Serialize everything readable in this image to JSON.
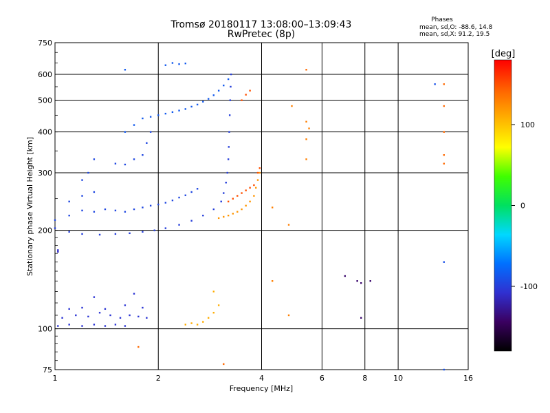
{
  "chart_data": {
    "type": "scatter",
    "title_line1": "Tromsø 20180117 13:08:00–13:09:43",
    "title_line2": "RwPretec (8p)",
    "phases": {
      "label": "Phases",
      "o_line": "mean, sd,O: -88.6, 14.8",
      "x_line": "mean, sd,X:  91.2, 19.5"
    },
    "xlabel": "Frequency [MHz]",
    "ylabel": "Stationary phase Virtual Height [km]",
    "xscale": "log",
    "yscale": "log",
    "xlim": [
      1,
      16
    ],
    "ylim": [
      75,
      750
    ],
    "x_ticks": [
      1,
      2,
      4,
      6,
      8,
      10,
      16
    ],
    "y_ticks": [
      75,
      100,
      200,
      300,
      400,
      500,
      600,
      750
    ],
    "grid": true,
    "colorbar": {
      "label": "[deg]",
      "range": [
        -180,
        180
      ],
      "ticks": [
        100,
        0,
        -100
      ],
      "colors": [
        "#000000",
        "#3a0060",
        "#3030d0",
        "#0070ff",
        "#00d8ff",
        "#00e060",
        "#40ff00",
        "#ffff00",
        "#ffb000",
        "#ff6000",
        "#ff0000"
      ]
    },
    "series": [
      {
        "points": [
          [
            1.02,
            102
          ],
          [
            1.1,
            103
          ],
          [
            1.2,
            102
          ],
          [
            1.3,
            103
          ],
          [
            1.4,
            102
          ],
          [
            1.5,
            103
          ],
          [
            1.6,
            102
          ],
          [
            1.05,
            108
          ],
          [
            1.15,
            110
          ],
          [
            1.25,
            109
          ],
          [
            1.35,
            112
          ],
          [
            1.45,
            110
          ],
          [
            1.55,
            108
          ],
          [
            1.65,
            110
          ],
          [
            1.75,
            109
          ],
          [
            1.85,
            108
          ],
          [
            1.1,
            115
          ],
          [
            1.2,
            116
          ],
          [
            1.4,
            115
          ],
          [
            1.6,
            118
          ],
          [
            1.8,
            116
          ],
          [
            1.7,
            128
          ],
          [
            1.3,
            125
          ]
        ],
        "phase": -105
      },
      {
        "points": [
          [
            1.02,
            172
          ],
          [
            1.02,
            174
          ]
        ],
        "phase": -110
      },
      {
        "points": [
          [
            1.0,
            203
          ],
          [
            1.1,
            198
          ],
          [
            1.2,
            195
          ],
          [
            1.35,
            194
          ],
          [
            1.5,
            195
          ],
          [
            1.65,
            196
          ],
          [
            1.8,
            198
          ],
          [
            1.95,
            200
          ],
          [
            2.1,
            203
          ],
          [
            2.3,
            208
          ],
          [
            2.5,
            214
          ],
          [
            2.7,
            222
          ],
          [
            2.9,
            232
          ],
          [
            3.05,
            245
          ],
          [
            3.1,
            260
          ],
          [
            3.15,
            280
          ],
          [
            3.18,
            300
          ],
          [
            3.2,
            330
          ],
          [
            3.21,
            360
          ],
          [
            3.22,
            400
          ],
          [
            3.23,
            450
          ],
          [
            3.24,
            500
          ],
          [
            3.25,
            550
          ],
          [
            3.26,
            600
          ]
        ],
        "phase": -100
      },
      {
        "points": [
          [
            1.0,
            215
          ],
          [
            1.1,
            222
          ],
          [
            1.2,
            230
          ],
          [
            1.3,
            228
          ],
          [
            1.4,
            232
          ],
          [
            1.5,
            230
          ],
          [
            1.6,
            228
          ],
          [
            1.7,
            232
          ],
          [
            1.8,
            235
          ],
          [
            1.9,
            238
          ],
          [
            2.0,
            240
          ],
          [
            2.1,
            243
          ],
          [
            2.2,
            247
          ],
          [
            2.3,
            252
          ],
          [
            2.4,
            256
          ],
          [
            2.5,
            262
          ],
          [
            2.6,
            268
          ],
          [
            1.1,
            245
          ],
          [
            1.2,
            255
          ],
          [
            1.3,
            262
          ],
          [
            1.2,
            285
          ],
          [
            1.25,
            300
          ],
          [
            1.3,
            330
          ],
          [
            1.5,
            320
          ],
          [
            1.6,
            318
          ],
          [
            1.7,
            330
          ],
          [
            1.8,
            340
          ],
          [
            1.85,
            370
          ],
          [
            1.9,
            400
          ]
        ],
        "phase": -95
      },
      {
        "points": [
          [
            1.6,
            400
          ],
          [
            1.7,
            420
          ],
          [
            1.8,
            440
          ],
          [
            1.9,
            445
          ],
          [
            2.0,
            450
          ],
          [
            2.1,
            455
          ],
          [
            2.2,
            460
          ],
          [
            2.3,
            465
          ],
          [
            2.4,
            470
          ],
          [
            2.5,
            478
          ],
          [
            2.6,
            485
          ],
          [
            2.7,
            495
          ],
          [
            2.8,
            505
          ],
          [
            2.9,
            518
          ],
          [
            3.0,
            535
          ],
          [
            3.1,
            555
          ],
          [
            3.2,
            580
          ],
          [
            2.1,
            640
          ],
          [
            2.2,
            650
          ],
          [
            2.3,
            645
          ],
          [
            2.4,
            648
          ],
          [
            1.6,
            620
          ]
        ],
        "phase": -85
      },
      {
        "points": [
          [
            2.4,
            103
          ],
          [
            2.5,
            104
          ],
          [
            2.6,
            103
          ],
          [
            2.7,
            105
          ],
          [
            2.8,
            108
          ],
          [
            2.9,
            112
          ],
          [
            3.0,
            118
          ],
          [
            2.9,
            130
          ]
        ],
        "phase": 110
      },
      {
        "points": [
          [
            3.0,
            218
          ],
          [
            3.1,
            220
          ],
          [
            3.2,
            222
          ],
          [
            3.3,
            225
          ],
          [
            3.4,
            228
          ],
          [
            3.5,
            232
          ],
          [
            3.6,
            238
          ],
          [
            3.7,
            245
          ],
          [
            3.8,
            255
          ],
          [
            3.85,
            270
          ],
          [
            3.9,
            285
          ],
          [
            3.95,
            300
          ]
        ],
        "phase": 120
      },
      {
        "points": [
          [
            3.2,
            245
          ],
          [
            3.3,
            250
          ],
          [
            3.4,
            255
          ],
          [
            3.5,
            260
          ],
          [
            3.6,
            265
          ],
          [
            3.7,
            270
          ],
          [
            3.8,
            275
          ],
          [
            3.9,
            300
          ],
          [
            3.95,
            310
          ],
          [
            3.5,
            500
          ],
          [
            3.6,
            520
          ],
          [
            3.7,
            535
          ]
        ],
        "phase": 150
      },
      {
        "points": [
          [
            4.3,
            235
          ],
          [
            4.3,
            140
          ],
          [
            4.8,
            110
          ],
          [
            4.8,
            208
          ],
          [
            4.9,
            480
          ],
          [
            5.4,
            330
          ],
          [
            5.4,
            380
          ],
          [
            5.5,
            410
          ],
          [
            5.4,
            430
          ]
        ],
        "phase": 130
      },
      {
        "points": [
          [
            7.0,
            145
          ],
          [
            7.6,
            140
          ],
          [
            7.8,
            138
          ],
          [
            8.3,
            140
          ],
          [
            7.8,
            108
          ]
        ],
        "phase": -140
      },
      {
        "points": [
          [
            12.8,
            560
          ],
          [
            13.6,
            160
          ],
          [
            13.6,
            75
          ]
        ],
        "phase": -90
      },
      {
        "points": [
          [
            13.6,
            480
          ],
          [
            13.6,
            400
          ],
          [
            13.6,
            340
          ],
          [
            13.6,
            320
          ],
          [
            13.6,
            560
          ],
          [
            5.4,
            620
          ],
          [
            3.1,
            78
          ],
          [
            1.75,
            88
          ]
        ],
        "phase": 140
      }
    ]
  }
}
